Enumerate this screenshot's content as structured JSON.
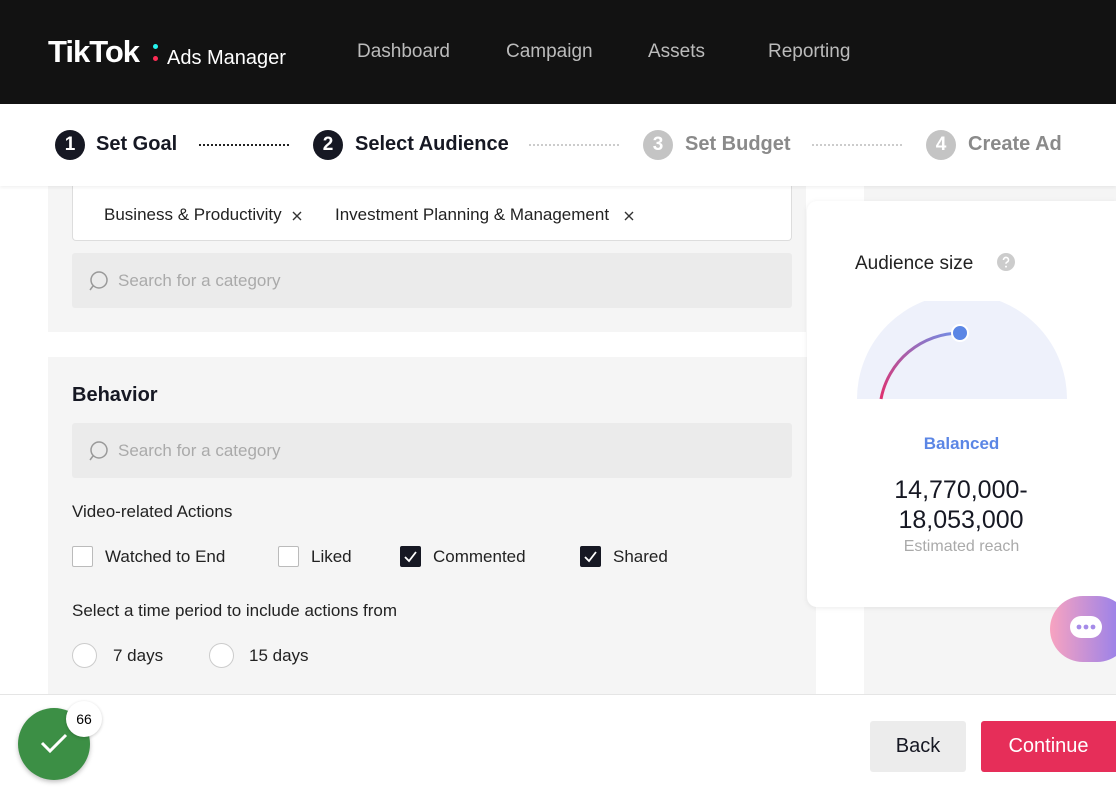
{
  "header": {
    "logo": "TikTok",
    "product": "Ads Manager",
    "nav": [
      "Dashboard",
      "Campaign",
      "Assets",
      "Reporting"
    ]
  },
  "steps": [
    {
      "number": "1",
      "label": "Set Goal",
      "active": true
    },
    {
      "number": "2",
      "label": "Select Audience",
      "active": true
    },
    {
      "number": "3",
      "label": "Set Budget",
      "active": false
    },
    {
      "number": "4",
      "label": "Create Ad",
      "active": false
    }
  ],
  "interests": {
    "tags": [
      "Business & Productivity",
      "Investment Planning & Management"
    ],
    "search_placeholder": "Search for a category"
  },
  "behavior": {
    "title": "Behavior",
    "search_placeholder": "Search for a category",
    "actions_title": "Video-related Actions",
    "actions": [
      {
        "label": "Watched to End",
        "checked": false
      },
      {
        "label": "Liked",
        "checked": false
      },
      {
        "label": "Commented",
        "checked": true
      },
      {
        "label": "Shared",
        "checked": true
      }
    ],
    "period_title": "Select a time period to include actions from",
    "periods": [
      "7 days",
      "15 days"
    ]
  },
  "audience": {
    "title": "Audience size",
    "status": "Balanced",
    "reach": "14,770,000-18,053,000",
    "reach_caption": "Estimated reach"
  },
  "footer": {
    "badge": "66",
    "back": "Back",
    "continue": "Continue"
  }
}
